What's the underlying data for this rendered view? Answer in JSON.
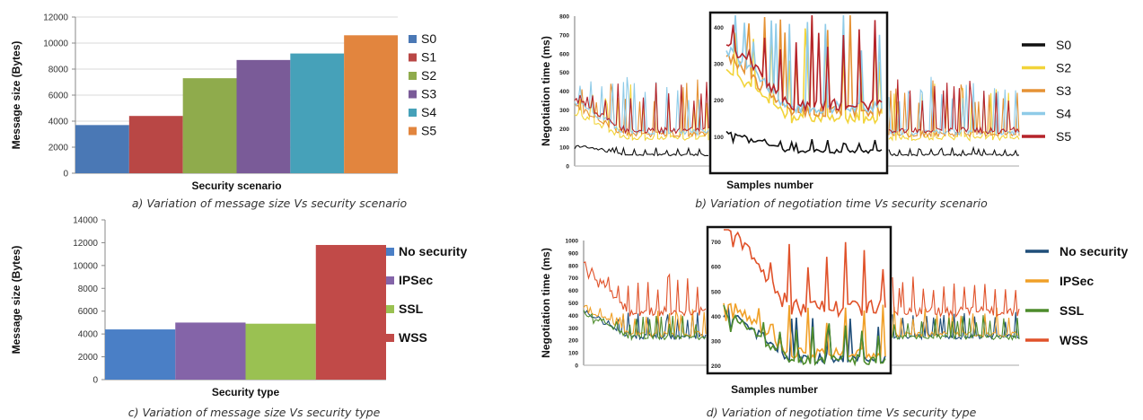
{
  "chart_data": [
    {
      "type": "bar",
      "caption": "a) Variation of message size Vs security scenario",
      "xlabel": "Security scenario",
      "ylabel": "Message size (Bytes)",
      "ylim": [
        0,
        12000
      ],
      "yticks": [
        "0",
        "2000",
        "4000",
        "6000",
        "8000",
        "10000",
        "12000"
      ],
      "categories": [
        "S0",
        "S1",
        "S2",
        "S3",
        "S4",
        "S5"
      ],
      "values": [
        3700,
        4400,
        7300,
        8700,
        9200,
        10600
      ],
      "colors": [
        "#4a78b5",
        "#b94745",
        "#8fab4c",
        "#7a5b98",
        "#46a1b9",
        "#e2853e"
      ],
      "legend": [
        "S0",
        "S1",
        "S2",
        "S3",
        "S4",
        "S5"
      ],
      "grid": true
    },
    {
      "type": "line",
      "caption": "b) Variation of negotiation time Vs security scenario",
      "xlabel": "Samples number",
      "ylabel": "Negotiation time (ms)",
      "ylim": [
        0,
        800
      ],
      "yticks": [
        "0",
        "100",
        "200",
        "300",
        "400",
        "500",
        "600",
        "700",
        "800"
      ],
      "inset_yticks": [
        "100",
        "200",
        "300",
        "400"
      ],
      "series": [
        {
          "name": "S0",
          "color": "#111111",
          "baseline": 60,
          "spike": 40
        },
        {
          "name": "S2",
          "color": "#f2d43a",
          "baseline": 150,
          "spike": 300
        },
        {
          "name": "S3",
          "color": "#e59235",
          "baseline": 170,
          "spike": 300
        },
        {
          "name": "S4",
          "color": "#8fcbe8",
          "baseline": 180,
          "spike": 300
        },
        {
          "name": "S5",
          "color": "#b5232a",
          "baseline": 190,
          "spike": 280
        }
      ]
    },
    {
      "type": "bar",
      "caption": "c) Variation of message size Vs security type",
      "xlabel": "Security type",
      "ylabel": "Message size (Bytes)",
      "ylim": [
        0,
        14000
      ],
      "yticks": [
        "0",
        "2000",
        "4000",
        "6000",
        "8000",
        "10000",
        "12000",
        "14000"
      ],
      "categories": [
        "No security",
        "IPSec",
        "SSL",
        "WSS"
      ],
      "values": [
        4400,
        5000,
        4900,
        11800
      ],
      "colors": [
        "#4a7fc6",
        "#8464a8",
        "#9ac152",
        "#c14a48"
      ],
      "legend": [
        "No security",
        "IPSec",
        "SSL",
        "WSS"
      ],
      "grid": false
    },
    {
      "type": "line",
      "caption": "d) Variation of negotiation time Vs security type",
      "xlabel": "Samples number",
      "ylabel": "Negotiation time (ms)",
      "ylim": [
        0,
        1000
      ],
      "yticks": [
        "0",
        "100",
        "200",
        "300",
        "400",
        "500",
        "600",
        "700",
        "800",
        "900",
        "1000"
      ],
      "inset_yticks": [
        "200",
        "300",
        "400",
        "500",
        "600",
        "700"
      ],
      "series": [
        {
          "name": "No security",
          "color": "#1f4e79",
          "baseline": 230,
          "spike": 200
        },
        {
          "name": "IPSec",
          "color": "#f0a028",
          "baseline": 250,
          "spike": 220
        },
        {
          "name": "SSL",
          "color": "#4d8c2c",
          "baseline": 225,
          "spike": 180
        },
        {
          "name": "WSS",
          "color": "#e0522a",
          "baseline": 430,
          "spike": 300
        }
      ]
    }
  ]
}
